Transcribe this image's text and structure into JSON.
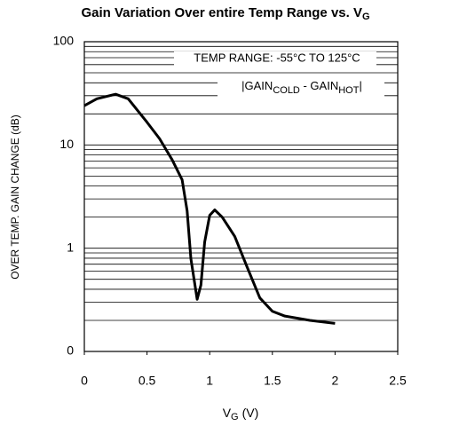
{
  "chart_data": {
    "type": "line",
    "title": "Gain Variation Over entire Temp Range vs. V",
    "title_subscript": "G",
    "x_label": "V",
    "x_label_subscript": "G",
    "x_label_unit": "(V)",
    "y_label": "OVER TEMP. GAIN CHANGE (dB)",
    "annotation_range": "TEMP RANGE: -55°C TO 125°C",
    "annotation_formula": [
      "|GAIN",
      "COLD",
      " - GAIN",
      "HOT",
      "|"
    ],
    "x": [
      0,
      0.1,
      0.25,
      0.35,
      0.5,
      0.6,
      0.7,
      0.78,
      0.82,
      0.85,
      0.9,
      0.93,
      0.96,
      1.0,
      1.04,
      1.1,
      1.2,
      1.3,
      1.4,
      1.5,
      1.6,
      1.8,
      2.0
    ],
    "series": [
      {
        "color": "#000000",
        "values": [
          24,
          28,
          31,
          28,
          16.6,
          11.5,
          7.2,
          4.6,
          2.3,
          0.79,
          0.32,
          0.44,
          1.15,
          2.08,
          2.35,
          2.0,
          1.3,
          0.65,
          0.33,
          0.245,
          0.22,
          0.2,
          0.187
        ]
      }
    ],
    "xlim": [
      0,
      2.5
    ],
    "xticks": [
      0,
      0.5,
      1,
      1.5,
      2,
      2.5
    ],
    "ylim": [
      0.1,
      100
    ],
    "yticks": [
      {
        "value": 0.1,
        "label": "0"
      },
      1,
      10,
      100
    ],
    "log_y": true,
    "grid": true,
    "minor_grid": true
  }
}
